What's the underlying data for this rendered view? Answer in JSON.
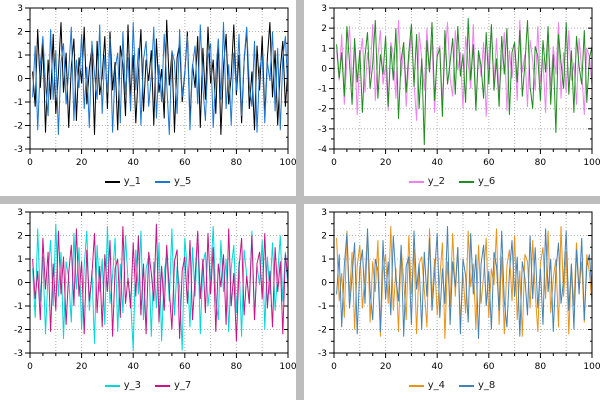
{
  "page": {
    "background": "#bdbdbd",
    "panel_background": "#ffffff",
    "grid_color": "#b4b4b4",
    "axis_color": "#000000"
  },
  "chart_data": [
    {
      "type": "line",
      "x_start": 1,
      "x_step": 1,
      "xlim": [
        0,
        100
      ],
      "ylim": [
        -3,
        3
      ],
      "xticks": [
        0,
        20,
        40,
        60,
        80,
        100
      ],
      "yticks": [
        -3,
        -2,
        -1,
        0,
        1,
        2,
        3
      ],
      "x_minor_step": 5,
      "x_grid_step": 10,
      "grid": true,
      "legend_position": "bottom",
      "series": [
        {
          "name": "y_1",
          "color": "#000000",
          "values": [
            0.3,
            -1.2,
            2.1,
            -0.4,
            1.5,
            -2.3,
            0.8,
            -0.9,
            1.9,
            -1.5,
            0.2,
            2.4,
            -0.6,
            1.1,
            -2.1,
            0.5,
            1.7,
            -1.8,
            0.9,
            -0.2,
            2.2,
            -1.1,
            0.4,
            1.3,
            -2.4,
            1.6,
            -0.7,
            0.1,
            1.8,
            -1.3,
            2.0,
            -0.5,
            0.7,
            -2.2,
            1.4,
            0.6,
            -1.6,
            2.3,
            -0.8,
            1.0,
            -1.9,
            0.3,
            2.1,
            -1.4,
            0.8,
            -0.1,
            1.2,
            -2.0,
            1.7,
            -0.6,
            0.4,
            -1.7,
            2.5,
            -0.3,
            1.1,
            -2.3,
            0.9,
            1.5,
            -1.0,
            0.2,
            2.0,
            -1.8,
            0.6,
            -0.4,
            1.8,
            -2.1,
            1.3,
            -0.9,
            2.2,
            -0.2,
            0.8,
            -1.5,
            1.6,
            -2.4,
            0.5,
            1.9,
            -1.1,
            0.1,
            2.3,
            -0.7,
            1.0,
            -1.9,
            0.7,
            2.1,
            -1.3,
            0.3,
            -2.2,
            1.4,
            -0.5,
            1.8,
            -1.6,
            0.9,
            2.4,
            -0.8,
            1.2,
            -2.0,
            0.4,
            1.6,
            -1.2,
            0.5
          ]
        },
        {
          "name": "y_5",
          "color": "#1e78d2",
          "values": [
            -0.8,
            1.4,
            -2.2,
            0.6,
            1.8,
            -0.3,
            -1.6,
            2.1,
            -0.9,
            1.2,
            -2.4,
            0.7,
            1.5,
            -1.1,
            0.3,
            2.2,
            -1.8,
            0.8,
            -0.4,
            1.9,
            -1.3,
            0.5,
            -2.1,
            1.6,
            0.2,
            -0.9,
            2.3,
            -1.5,
            1.0,
            -0.6,
            1.7,
            -2.3,
            0.4,
            1.1,
            -1.9,
            2.0,
            -0.7,
            0.9,
            -1.4,
            2.4,
            -0.5,
            1.3,
            -2.0,
            0.8,
            1.6,
            -1.2,
            0.1,
            2.2,
            -1.7,
            0.6,
            -1.0,
            1.9,
            -0.2,
            -2.4,
            1.2,
            0.7,
            -1.5,
            2.1,
            -0.8,
            0.3,
            1.8,
            -2.2,
            0.5,
            1.4,
            -1.1,
            2.3,
            -0.4,
            -1.8,
            0.9,
            1.5,
            -2.1,
            0.2,
            1.7,
            -0.9,
            2.4,
            -1.3,
            0.6,
            -2.0,
            1.1,
            -0.5,
            1.9,
            -1.6,
            0.8,
            2.2,
            -0.3,
            -1.2,
            1.6,
            -2.3,
            0.4,
            1.0,
            -1.9,
            0.7,
            -0.1,
            2.0,
            -1.4,
            1.3,
            -2.2,
            0.9,
            1.8,
            -0.7
          ]
        }
      ]
    },
    {
      "type": "line",
      "x_start": 1,
      "x_step": 1,
      "xlim": [
        0,
        100
      ],
      "ylim": [
        -4,
        3
      ],
      "xticks": [
        0,
        20,
        40,
        60,
        80,
        100
      ],
      "yticks": [
        -4,
        -3,
        -2,
        -1,
        0,
        1,
        2,
        3
      ],
      "x_minor_step": 5,
      "x_grid_step": 10,
      "grid": true,
      "legend_position": "bottom",
      "series": [
        {
          "name": "y_2",
          "color": "#ee82ee",
          "values": [
            0.9,
            -0.6,
            1.7,
            -1.8,
            0.4,
            2.1,
            -0.9,
            1.2,
            -2.3,
            0.5,
            1.5,
            -1.2,
            0.8,
            -0.3,
            2.2,
            -1.6,
            0.6,
            1.9,
            -0.8,
            0.2,
            -2.1,
            1.3,
            0.7,
            -1.5,
            2.4,
            -0.4,
            1.0,
            -1.9,
            0.3,
            1.6,
            -0.7,
            -2.6,
            1.8,
            0.5,
            -1.1,
            2.0,
            -0.2,
            1.4,
            -2.2,
            0.9,
            1.1,
            -1.7,
            0.6,
            2.3,
            -0.5,
            -1.4,
            1.9,
            -0.1,
            0.8,
            -2.0,
            1.6,
            0.3,
            -1.0,
            2.2,
            -1.8,
            0.7,
            -0.4,
            1.3,
            -2.4,
            0.6,
            2.0,
            -0.8,
            1.5,
            -1.3,
            0.2,
            1.8,
            -2.1,
            0.9,
            -0.5,
            1.2,
            -1.6,
            2.4,
            -0.2,
            0.7,
            -1.9,
            1.4,
            0.4,
            -1.1,
            2.1,
            -0.7,
            0.5,
            -2.2,
            1.7,
            -0.9,
            1.1,
            -0.3,
            2.3,
            -1.5,
            0.8,
            -1.2,
            1.9,
            -0.6,
            0.3,
            -1.8,
            1.5,
            -0.1,
            -2.3,
            1.0,
            0.6,
            -0.9
          ]
        },
        {
          "name": "y_6",
          "color": "#228b22",
          "values": [
            1.2,
            -0.5,
            0.8,
            -1.4,
            2.1,
            0.3,
            -1.8,
            1.5,
            -0.7,
            0.9,
            -2.2,
            0.6,
            1.8,
            -1.0,
            0.2,
            2.4,
            -1.5,
            0.7,
            -0.3,
            1.6,
            -1.9,
            1.1,
            -0.6,
            2.0,
            -2.5,
            0.4,
            1.3,
            -1.2,
            0.8,
            2.2,
            -0.9,
            1.7,
            -2.0,
            0.5,
            -3.8,
            1.4,
            -0.2,
            2.3,
            -1.6,
            0.6,
            1.0,
            -2.4,
            1.9,
            -0.8,
            0.3,
            1.5,
            -1.3,
            2.1,
            -0.4,
            0.7,
            -1.7,
            2.5,
            -0.6,
            1.2,
            -2.1,
            0.9,
            0.1,
            -1.5,
            1.8,
            -0.8,
            2.2,
            -1.1,
            0.5,
            -1.9,
            1.6,
            -0.3,
            2.0,
            -2.3,
            0.8,
            1.3,
            -0.7,
            1.9,
            -1.4,
            0.2,
            2.4,
            -0.9,
            -2.0,
            1.1,
            0.6,
            -1.6,
            1.4,
            -0.2,
            2.1,
            -1.8,
            0.7,
            -3.2,
            1.7,
            0.3,
            -1.0,
            2.3,
            -1.3,
            0.9,
            -2.2,
            1.6,
            0.1,
            -0.8,
            1.9,
            -1.7,
            0.5,
            1.1
          ]
        }
      ]
    },
    {
      "type": "line",
      "x_start": 1,
      "x_step": 1,
      "xlim": [
        0,
        100
      ],
      "ylim": [
        -3,
        3
      ],
      "xticks": [
        0,
        20,
        40,
        60,
        80,
        100
      ],
      "yticks": [
        -3,
        -2,
        -1,
        0,
        1,
        2,
        3
      ],
      "x_minor_step": 5,
      "x_grid_step": 10,
      "grid": true,
      "legend_position": "bottom",
      "series": [
        {
          "name": "y_3",
          "color": "#00d8d8",
          "values": [
            0.6,
            -1.5,
            2.3,
            -0.8,
            1.1,
            -2.2,
            0.4,
            1.8,
            -1.0,
            2.5,
            -0.6,
            1.3,
            -2.4,
            0.9,
            0.2,
            -1.7,
            2.1,
            -0.3,
            1.5,
            -2.0,
            0.7,
            2.2,
            -1.2,
            0.5,
            -2.6,
            1.6,
            -0.4,
            1.0,
            -1.8,
            2.4,
            -0.9,
            0.3,
            1.9,
            -2.1,
            0.8,
            -1.3,
            2.0,
            0.1,
            -0.7,
            -2.9,
            1.4,
            -0.5,
            2.2,
            -1.6,
            0.6,
            1.1,
            -2.3,
            0.9,
            -1.1,
            1.7,
            -2.5,
            0.4,
            1.2,
            -0.8,
            2.3,
            -1.4,
            0.7,
            -0.2,
            -2.9,
            1.9,
            0.5,
            -1.9,
            1.5,
            -0.6,
            2.1,
            -2.2,
            0.8,
            1.3,
            -1.0,
            0.2,
            2.4,
            -0.7,
            -1.6,
            1.8,
            -0.4,
            1.0,
            -2.1,
            0.6,
            1.6,
            -1.3,
            0.9,
            -2.3,
            1.4,
            0.3,
            -0.9,
            2.2,
            -1.5,
            0.7,
            -0.1,
            1.8,
            -2.0,
            1.1,
            -0.5,
            1.7,
            -1.2,
            0.4,
            2.0,
            -0.8,
            1.3,
            -0.3
          ]
        },
        {
          "name": "y_7",
          "color": "#c71585",
          "values": [
            1.0,
            -0.7,
            0.5,
            -1.6,
            1.9,
            -0.3,
            1.3,
            -2.1,
            0.8,
            -1.2,
            2.2,
            -0.5,
            1.1,
            -1.8,
            0.4,
            1.6,
            -1.0,
            2.3,
            -0.6,
            0.9,
            -2.2,
            1.4,
            -0.8,
            0.3,
            2.1,
            -1.3,
            0.7,
            -1.9,
            1.2,
            -0.4,
            1.8,
            -2.3,
            0.6,
            1.0,
            -1.5,
            2.4,
            -0.9,
            0.2,
            -1.1,
            1.7,
            -0.6,
            2.0,
            -1.4,
            0.8,
            -2.2,
            1.3,
            0.4,
            -0.8,
            2.5,
            -1.7,
            0.7,
            -1.2,
            1.6,
            -0.3,
            -2.0,
            0.9,
            1.4,
            -2.4,
            0.5,
            1.1,
            -0.9,
            1.8,
            -1.6,
            0.2,
            2.2,
            -0.7,
            1.0,
            -1.3,
            2.1,
            -0.5,
            1.5,
            -2.1,
            0.8,
            -0.2,
            1.2,
            -1.8,
            2.3,
            -1.0,
            0.4,
            -2.5,
            0.6,
            1.9,
            -1.4,
            0.3,
            -0.9,
            2.0,
            -1.6,
            0.8,
            1.3,
            -0.7,
            2.1,
            -1.1,
            0.5,
            -1.9,
            1.5,
            -0.4,
            0.9,
            -2.2,
            1.2,
            0.1
          ]
        }
      ]
    },
    {
      "type": "line",
      "x_start": 1,
      "x_step": 1,
      "xlim": [
        0,
        100
      ],
      "ylim": [
        -3,
        3
      ],
      "xticks": [
        0,
        20,
        40,
        60,
        80,
        100
      ],
      "yticks": [
        -3,
        -2,
        -1,
        0,
        1,
        2,
        3
      ],
      "x_minor_step": 5,
      "x_grid_step": 10,
      "grid": true,
      "legend_position": "bottom",
      "series": [
        {
          "name": "y_4",
          "color": "#e8941a",
          "values": [
            1.9,
            -0.8,
            0.4,
            -1.5,
            2.2,
            -0.6,
            1.3,
            -2.0,
            0.7,
            1.6,
            -1.1,
            0.3,
            2.1,
            -1.7,
            0.9,
            -0.4,
            1.8,
            -2.3,
            0.5,
            1.2,
            -0.9,
            2.4,
            -1.2,
            0.6,
            -2.1,
            1.5,
            0.1,
            -1.6,
            2.0,
            -0.5,
            1.4,
            -2.2,
            0.8,
            1.1,
            -0.3,
            -1.9,
            2.3,
            -0.7,
            1.0,
            -1.4,
            0.2,
            1.7,
            -2.4,
            0.9,
            -1.0,
            2.1,
            -0.6,
            1.5,
            -1.8,
            0.4,
            -1.3,
            2.2,
            -0.2,
            0.8,
            -2.0,
            1.6,
            -0.9,
            0.3,
            1.9,
            -1.5,
            0.6,
            -0.1,
            2.3,
            -1.8,
            1.1,
            -2.2,
            0.7,
            1.4,
            -0.8,
            2.0,
            -1.6,
            0.5,
            -2.3,
            1.2,
            0.9,
            -1.1,
            1.8,
            -0.4,
            -2.1,
            0.8,
            1.5,
            -0.7,
            2.2,
            -1.3,
            0.2,
            1.0,
            -1.9,
            2.4,
            -0.6,
            1.3,
            -2.2,
            0.7,
            -1.0,
            1.7,
            -0.3,
            0.9,
            -1.7,
            1.2,
            0.4,
            -0.9
          ]
        },
        {
          "name": "y_8",
          "color": "#4682b4",
          "values": [
            -0.5,
            1.2,
            -1.9,
            0.7,
            2.1,
            -1.1,
            0.3,
            1.7,
            -2.2,
            0.6,
            1.4,
            -0.9,
            2.3,
            -0.4,
            -1.6,
            1.0,
            0.5,
            -2.1,
            1.8,
            -0.7,
            0.9,
            -1.4,
            2.0,
            0.2,
            -0.8,
            1.6,
            -2.3,
            0.7,
            1.1,
            -1.8,
            2.2,
            -0.3,
            0.8,
            -2.0,
            1.3,
            -0.6,
            1.9,
            -1.2,
            0.4,
            2.1,
            -1.5,
            0.6,
            -0.9,
            2.4,
            -1.8,
            0.9,
            -0.2,
            1.5,
            -2.2,
            1.0,
            0.3,
            -1.7,
            2.1,
            -0.5,
            1.2,
            -2.4,
            0.8,
            1.6,
            -1.0,
            0.5,
            -2.0,
            1.3,
            0.7,
            -1.2,
            2.2,
            -0.8,
            -1.9,
            0.4,
            1.8,
            -0.6,
            1.1,
            -2.3,
            0.9,
            0.2,
            -1.4,
            2.0,
            -0.7,
            1.5,
            -1.1,
            0.6,
            -1.8,
            2.3,
            -0.4,
            1.0,
            -2.1,
            0.5,
            1.7,
            -0.9,
            0.1,
            2.2,
            -1.2,
            0.8,
            -2.0,
            1.4,
            -0.5,
            1.9,
            -1.6,
            0.7,
            1.2,
            -0.4
          ]
        }
      ]
    }
  ]
}
